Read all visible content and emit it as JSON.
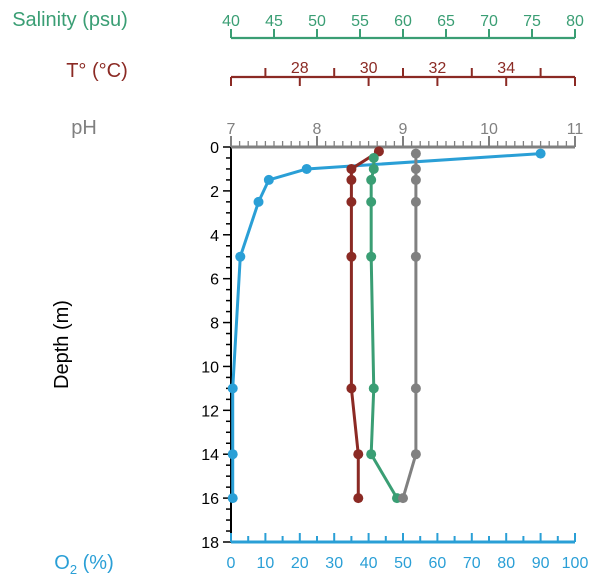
{
  "chart_data": {
    "type": "line",
    "yaxis": {
      "label": "Depth (m)",
      "range": [
        0,
        18
      ],
      "ticks": [
        0,
        2,
        4,
        6,
        8,
        10,
        12,
        14,
        16,
        18
      ],
      "inverted": true,
      "color": "#000000"
    },
    "x_axes": [
      {
        "id": "salinity",
        "label": "Salinity (psu)",
        "position": "top",
        "range": [
          40,
          80
        ],
        "ticks": [
          40,
          45,
          50,
          55,
          60,
          65,
          70,
          75,
          80
        ],
        "color": "#3a9e74"
      },
      {
        "id": "temperature",
        "label": "T° (°C)",
        "position": "top",
        "range": [
          26,
          36
        ],
        "ticks": [
          28,
          30,
          32,
          34
        ],
        "color": "#8b2a24"
      },
      {
        "id": "ph",
        "label": "pH",
        "position": "top",
        "range": [
          7,
          11
        ],
        "ticks": [
          7,
          8,
          9,
          10,
          11
        ],
        "color": "#808080"
      },
      {
        "id": "oxygen",
        "label": "O",
        "label_sub": "2",
        "label_suffix": " (%)",
        "position": "bottom",
        "range": [
          0,
          100
        ],
        "ticks": [
          0,
          10,
          20,
          30,
          40,
          50,
          60,
          70,
          80,
          90,
          100
        ],
        "color": "#2a9fd6"
      }
    ],
    "series": [
      {
        "axis": "oxygen",
        "color": "#2a9fd6",
        "points": [
          {
            "x": 90,
            "depth": 0.3
          },
          {
            "x": 22,
            "depth": 1.0
          },
          {
            "x": 11,
            "depth": 1.5
          },
          {
            "x": 8,
            "depth": 2.5
          },
          {
            "x": 2.7,
            "depth": 5.0
          },
          {
            "x": 0.5,
            "depth": 11.0
          },
          {
            "x": 0.5,
            "depth": 14.0
          },
          {
            "x": 0.5,
            "depth": 16.0
          }
        ]
      },
      {
        "axis": "temperature",
        "color": "#8b2a24",
        "points": [
          {
            "x": 30.3,
            "depth": 0.2
          },
          {
            "x": 29.5,
            "depth": 1.0
          },
          {
            "x": 29.5,
            "depth": 1.5
          },
          {
            "x": 29.5,
            "depth": 2.5
          },
          {
            "x": 29.5,
            "depth": 5.0
          },
          {
            "x": 29.5,
            "depth": 11.0
          },
          {
            "x": 29.7,
            "depth": 14.0
          },
          {
            "x": 29.7,
            "depth": 16.0
          }
        ]
      },
      {
        "axis": "salinity",
        "color": "#3a9e74",
        "points": [
          {
            "x": 56.6,
            "depth": 0.5
          },
          {
            "x": 56.6,
            "depth": 1.0
          },
          {
            "x": 56.3,
            "depth": 1.5
          },
          {
            "x": 56.3,
            "depth": 2.5
          },
          {
            "x": 56.3,
            "depth": 5.0
          },
          {
            "x": 56.6,
            "depth": 11.0
          },
          {
            "x": 56.3,
            "depth": 14.0
          },
          {
            "x": 59.3,
            "depth": 16.0
          }
        ]
      },
      {
        "axis": "ph",
        "color": "#808080",
        "points": [
          {
            "x": 9.15,
            "depth": 0.3
          },
          {
            "x": 9.15,
            "depth": 1.0
          },
          {
            "x": 9.15,
            "depth": 1.5
          },
          {
            "x": 9.15,
            "depth": 2.5
          },
          {
            "x": 9.15,
            "depth": 5.0
          },
          {
            "x": 9.15,
            "depth": 11.0
          },
          {
            "x": 9.15,
            "depth": 14.0
          },
          {
            "x": 9.0,
            "depth": 16.0
          }
        ]
      }
    ],
    "grid": false,
    "legend": "none"
  }
}
